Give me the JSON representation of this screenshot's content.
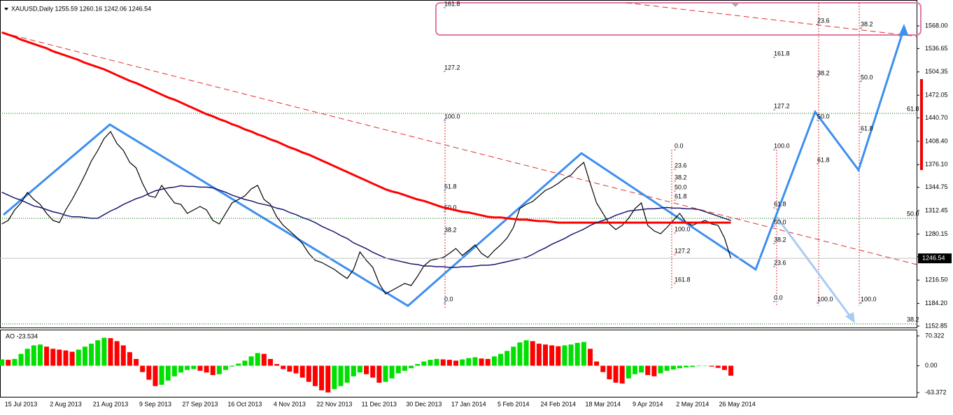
{
  "chart_data": [
    {
      "type": "line",
      "title": "XAUUSD,Daily  1255.59 1260.16 1242.06 1246.54",
      "categories": [
        null,
        null,
        null,
        "15 Jul 2013",
        null,
        null,
        null,
        null,
        null,
        null,
        "2 Aug 2013",
        null,
        null,
        null,
        null,
        null,
        null,
        "21 Aug 2013",
        null,
        null,
        null,
        null,
        null,
        null,
        "9 Sep 2013",
        null,
        null,
        null,
        null,
        null,
        null,
        "27 Sep 2013",
        null,
        null,
        null,
        null,
        null,
        null,
        "16 Oct 2013",
        null,
        null,
        null,
        null,
        null,
        null,
        "4 Nov 2013",
        null,
        null,
        null,
        null,
        null,
        null,
        "22 Nov 2013",
        null,
        null,
        null,
        null,
        null,
        null,
        "11 Dec 2013",
        null,
        null,
        null,
        null,
        null,
        null,
        "30 Dec 2013",
        null,
        null,
        null,
        null,
        null,
        null,
        "17 Jan 2014",
        null,
        null,
        null,
        null,
        null,
        null,
        "5 Feb 2014",
        null,
        null,
        null,
        null,
        null,
        null,
        "24 Feb 2014",
        null,
        null,
        null,
        null,
        null,
        null,
        "18 Mar 2014",
        null,
        null,
        null,
        null,
        null,
        null,
        "9 Apr 2014",
        null,
        null,
        null,
        null,
        null,
        null,
        "2 May 2014",
        null,
        null,
        null,
        null,
        null,
        null,
        "26 May 2014"
      ],
      "series": [
        {
          "color": "#000000",
          "values": [
            1294.1,
            1299.0,
            1313.5,
            1323.2,
            1337.7,
            1328.0,
            1321.2,
            1308.7,
            1299.0,
            1296.1,
            1313.5,
            1328.0,
            1344.5,
            1361.9,
            1381.2,
            1395.7,
            1412.2,
            1421.9,
            1405.4,
            1395.7,
            1379.3,
            1371.6,
            1350.3,
            1332.9,
            1330.9,
            1347.4,
            1334.8,
            1323.2,
            1321.2,
            1308.7,
            1313.5,
            1318.3,
            1313.5,
            1299.0,
            1294.1,
            1308.7,
            1323.2,
            1328.0,
            1332.9,
            1342.5,
            1347.4,
            1328.0,
            1321.2,
            1303.8,
            1292.2,
            1284.5,
            1276.7,
            1267.0,
            1253.5,
            1243.8,
            1240.9,
            1236.1,
            1231.2,
            1224.5,
            1218.7,
            1231.2,
            1255.4,
            1243.8,
            1234.1,
            1211.9,
            1197.4,
            1202.2,
            1207.0,
            1211.9,
            1209.0,
            1221.6,
            1236.1,
            1243.8,
            1245.7,
            1247.7,
            1253.5,
            1260.3,
            1250.6,
            1257.4,
            1265.1,
            1253.5,
            1247.7,
            1257.4,
            1265.1,
            1274.8,
            1289.3,
            1315.4,
            1321.2,
            1325.1,
            1332.9,
            1340.6,
            1344.5,
            1350.3,
            1357.0,
            1361.9,
            1371.6,
            1379.3,
            1350.3,
            1323.2,
            1308.7,
            1294.1,
            1286.4,
            1292.2,
            1301.9,
            1315.4,
            1323.2,
            1292.2,
            1284.5,
            1280.6,
            1289.3,
            1299.0,
            1308.7,
            1296.1,
            1292.2,
            1296.1,
            1299.0,
            1294.1,
            1292.2,
            1274.8,
            1246.54,
            null
          ]
        },
        {
          "color": "#ff0000",
          "values": [
            1559,
            1556,
            1553,
            1549,
            1546,
            1543,
            1540,
            1537,
            1533,
            1530,
            1527,
            1524,
            1521,
            1517,
            1514,
            1511,
            1508,
            1504,
            1500,
            1496,
            1492,
            1489,
            1485,
            1481,
            1477,
            1473,
            1469,
            1466,
            1462,
            1458,
            1454,
            1450,
            1446,
            1443,
            1439,
            1436,
            1432,
            1429,
            1425,
            1422,
            1418,
            1415,
            1411,
            1408,
            1404,
            1400,
            1397,
            1393,
            1390,
            1386,
            1382,
            1378,
            1374,
            1370,
            1366,
            1362,
            1358,
            1354,
            1350,
            1346,
            1342,
            1339,
            1337,
            1334,
            1331,
            1328,
            1326,
            1323,
            1320,
            1317,
            1315,
            1313,
            1311,
            1310,
            1308,
            1306,
            1304,
            1303,
            1303,
            1302,
            1301,
            1300,
            1300,
            1299,
            1298,
            1298,
            1297,
            1296,
            1296,
            1296,
            1296,
            1296,
            1296,
            1296,
            1296,
            1296,
            1296,
            1296,
            1296,
            1296,
            1296,
            1296,
            1296,
            1296,
            1296,
            1296,
            1296,
            1296,
            1296,
            1296,
            1296,
            1296,
            1296,
            1296,
            1296,
            null
          ]
        },
        {
          "color": "#191970",
          "values": [
            1338,
            1334,
            1330,
            1327,
            1323,
            1319,
            1317,
            1314,
            1311,
            1309,
            1306,
            1304,
            1304,
            1303,
            1302,
            1302,
            1307,
            1312,
            1316,
            1321,
            1325,
            1329,
            1332,
            1336,
            1340,
            1342,
            1344,
            1345,
            1347,
            1346,
            1346,
            1345,
            1345,
            1344,
            1341,
            1338,
            1334,
            1331,
            1328,
            1326,
            1323,
            1321,
            1319,
            1316,
            1314,
            1310,
            1307,
            1303,
            1300,
            1296,
            1291,
            1287,
            1283,
            1278,
            1274,
            1268,
            1264,
            1260,
            1255,
            1251,
            1247,
            1245,
            1243,
            1241,
            1239,
            1238,
            1236,
            1236,
            1235,
            1235,
            1234,
            1234,
            1235,
            1235,
            1236,
            1237,
            1237,
            1238,
            1240,
            1242,
            1244,
            1246,
            1248,
            1252,
            1257,
            1261,
            1266,
            1270,
            1274,
            1279,
            1283,
            1287,
            1292,
            1296,
            1299,
            1302,
            1306,
            1309,
            1312,
            1313,
            1314,
            1315,
            1315,
            1316,
            1317,
            1316,
            1316,
            1315,
            1315,
            1314,
            1311,
            1308,
            1305,
            1302,
            1299,
            null
          ]
        }
      ],
      "ylim": [
        1150.9,
        1603.8
      ],
      "yticks": [
        {
          "value": 1568.0,
          "label": "1568.00"
        },
        {
          "value": 1536.65,
          "label": "1536.65"
        },
        {
          "value": 1504.35,
          "label": "1504.35"
        },
        {
          "value": 1472.05,
          "label": "1472.05"
        },
        {
          "value": 1440.7,
          "label": "1440.70"
        },
        {
          "value": 1408.4,
          "label": "1408.40"
        },
        {
          "value": 1376.1,
          "label": "1376.10"
        },
        {
          "value": 1344.75,
          "label": "1344.75"
        },
        {
          "value": 1312.45,
          "label": "1312.45"
        },
        {
          "value": 1280.15,
          "label": "1280.15"
        },
        {
          "value": 1248.8,
          "label": "1248.80"
        },
        {
          "value": 1216.5,
          "label": "1216.50"
        },
        {
          "value": 1184.2,
          "label": "1184.20"
        },
        {
          "value": 1152.85,
          "label": "1152.85"
        }
      ],
      "hlines": [
        {
          "value": 1447.0,
          "label": "61.8",
          "color": "#006400"
        },
        {
          "value": 1301.9,
          "label": "50.0",
          "color": "#006400"
        },
        {
          "value": 1155.8,
          "label": "38.2",
          "color": "#006400"
        }
      ],
      "fibs": [
        {
          "color": "#3a6ed8",
          "levels": [
            {
              "value": 1593.2,
              "label": "161.8"
            },
            {
              "value": 1505.1,
              "label": "127.2"
            },
            {
              "value": 1437.4,
              "label": "100.0"
            },
            {
              "value": 1340.6,
              "label": "61.8"
            },
            {
              "value": 1311.6,
              "label": "50.0"
            },
            {
              "value": 1280.6,
              "label": "38.2"
            },
            {
              "value": 1184.8,
              "label": "0.0"
            }
          ]
        },
        {
          "color": "#e8502a",
          "levels": [
            {
              "value": 1396.7,
              "label": "0.0"
            },
            {
              "value": 1369.6,
              "label": "23.6"
            },
            {
              "value": 1353.2,
              "label": "38.2"
            },
            {
              "value": 1339.6,
              "label": "50.0"
            },
            {
              "value": 1327.0,
              "label": "61.8"
            },
            {
              "value": 1281.6,
              "label": "100.0"
            },
            {
              "value": 1251.6,
              "label": "127.2"
            },
            {
              "value": 1211.9,
              "label": "161.8"
            }
          ]
        },
        {
          "color": "#3a6ed8",
          "levels": [
            {
              "value": 1524.4,
              "label": "161.8"
            },
            {
              "value": 1451.9,
              "label": "127.2"
            },
            {
              "value": 1396.7,
              "label": "100.0"
            },
            {
              "value": 1316.4,
              "label": "61.8"
            },
            {
              "value": 1291.2,
              "label": "50.0"
            },
            {
              "value": 1267.0,
              "label": "38.2"
            },
            {
              "value": 1235.1,
              "label": "23.6"
            },
            {
              "value": 1186.7,
              "label": "0.0"
            }
          ]
        },
        {
          "color": "#3a6ed8",
          "levels": [
            {
              "value": 1569.9,
              "label": "23.6"
            },
            {
              "value": 1497.4,
              "label": "38.2"
            },
            {
              "value": 1437.4,
              "label": "50.0"
            },
            {
              "value": 1377.4,
              "label": "61.8"
            },
            {
              "value": 1184.8,
              "label": "100.0"
            }
          ]
        },
        {
          "color": "#8b1a8b",
          "levels": [
            {
              "value": 1565.1,
              "label": "38.2"
            },
            {
              "value": 1491.5,
              "label": "50.0"
            },
            {
              "value": 1420.9,
              "label": "61.8"
            },
            {
              "value": 1184.8,
              "label": "100.0"
            }
          ]
        }
      ]
    },
    {
      "type": "bar",
      "title": "AO -23.534",
      "up_color": "#00e000",
      "down_color": "#ff0000",
      "values": [
        15,
        14,
        16,
        28,
        40,
        48,
        50,
        45,
        40,
        38,
        36,
        33,
        38,
        45,
        52,
        60,
        66,
        65,
        58,
        48,
        32,
        16,
        -15,
        -33,
        -48,
        -45,
        -35,
        -25,
        -16,
        -10,
        -8,
        -12,
        -16,
        -22,
        -20,
        -10,
        -2,
        5,
        12,
        22,
        30,
        28,
        16,
        4,
        -8,
        -14,
        -18,
        -28,
        -38,
        -48,
        -58,
        -63,
        -55,
        -48,
        -40,
        -25,
        -16,
        -20,
        -28,
        -40,
        -38,
        -30,
        -18,
        -12,
        -6,
        4,
        10,
        14,
        16,
        15,
        14,
        12,
        15,
        18,
        20,
        17,
        16,
        22,
        28,
        35,
        45,
        55,
        60,
        58,
        52,
        50,
        48,
        46,
        48,
        50,
        54,
        56,
        40,
        10,
        -15,
        -32,
        -40,
        -42,
        -30,
        -20,
        -16,
        -22,
        -25,
        -18,
        -12,
        -9,
        -6,
        -4,
        -3,
        -1,
        0,
        -2,
        -5,
        -10,
        -23.534,
        null
      ],
      "ylim": [
        -73.3,
        83.5
      ],
      "yticks": [
        70.322,
        {
          "value": 0,
          "label": "0.00"
        },
        -63.372
      ]
    }
  ]
}
